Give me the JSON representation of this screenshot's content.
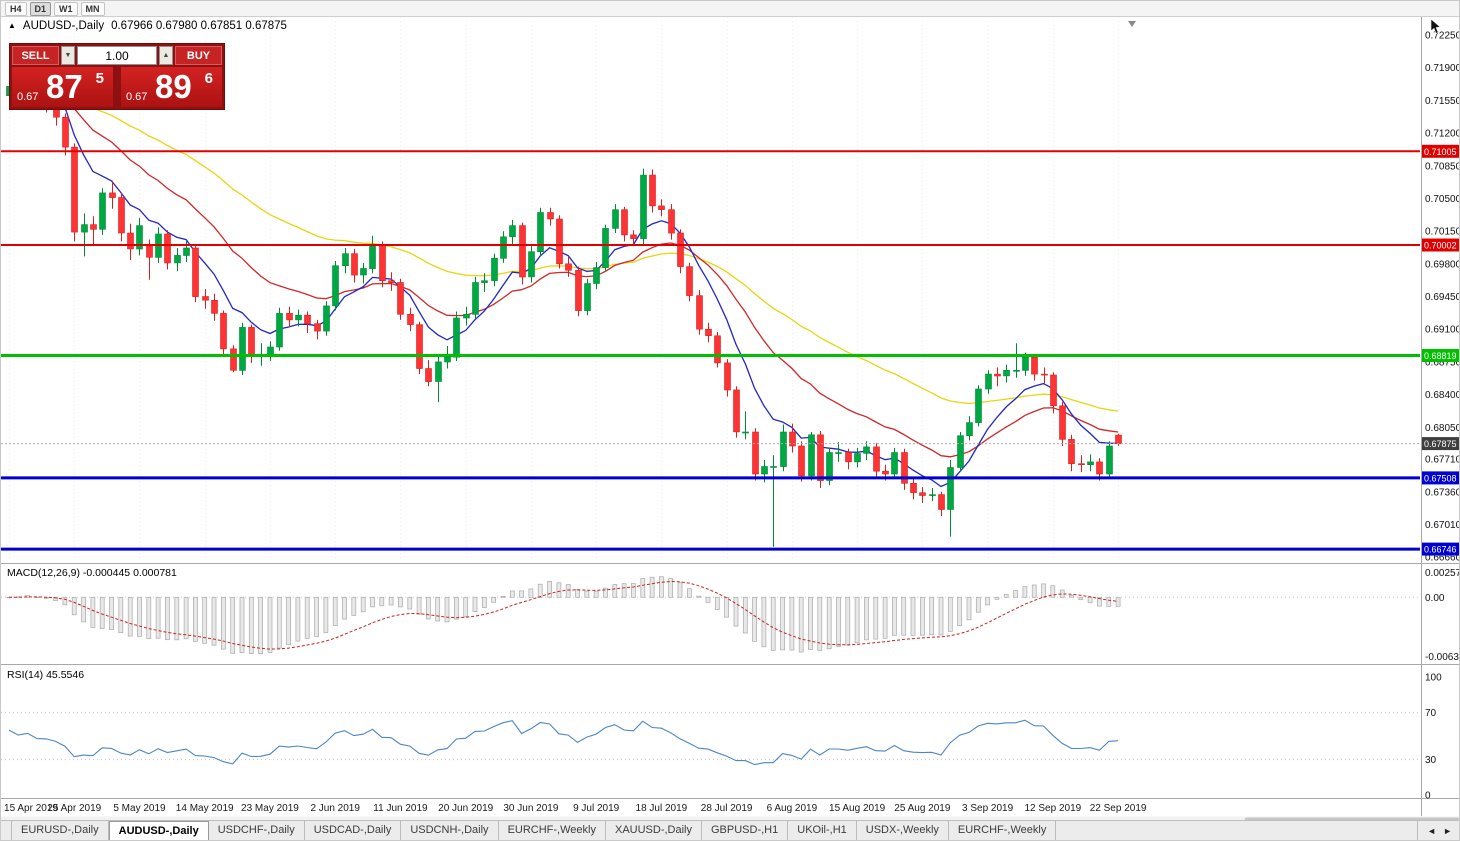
{
  "toolbar": {
    "timeframes": [
      "H4",
      "D1",
      "W1",
      "MN"
    ],
    "active": "D1"
  },
  "chart_header": {
    "symbol": "AUDUSD-,Daily",
    "ohlc": "0.67966 0.67980 0.67851 0.67875"
  },
  "icons": {
    "collapse": "▲",
    "vol_down": "▼",
    "vol_up": "▲",
    "tab_prev": "◄",
    "tab_next": "►"
  },
  "trade_panel": {
    "sell_label": "SELL",
    "buy_label": "BUY",
    "volume": "1.00",
    "sell_prefix": "0.67",
    "sell_big": "87",
    "sell_sup": "5",
    "buy_prefix": "0.67",
    "buy_big": "89",
    "buy_sup": "6"
  },
  "colors": {
    "bull": "#00A843",
    "bull_dark": "#008a36",
    "bear": "#FE3434",
    "bear_dark": "#d92020",
    "ma_fast": "#2026c8",
    "ma_mid": "#d02828",
    "ma_slow": "#e8d50f",
    "macd_signal": "#cc2222",
    "macd_hist_fill": "#e8e8e8",
    "macd_hist_stroke": "#a9a9a9",
    "rsi": "#4a86c8",
    "grid": "#ededed",
    "bid_tag": "#3f3f3f",
    "level_red": "#e00000",
    "level_green": "#00c000",
    "level_blue": "#0000d0"
  },
  "tabs": {
    "items": [
      "EURUSD-,Daily",
      "AUDUSD-,Daily",
      "USDCHF-,Daily",
      "USDCAD-,Daily",
      "USDCNH-,Daily",
      "EURCHF-,Weekly",
      "XAUUSD-,Daily",
      "GBPUSD-,H1",
      "UKOil-,H1",
      "USDX-,Weekly",
      "EURCHF-,Weekly"
    ],
    "active_index": 1
  },
  "chart_data": {
    "type": "candlestick",
    "symbol": "AUDUSD",
    "timeframe": "Daily",
    "current_bid": {
      "price": 0.67875,
      "label": "0.67875"
    },
    "y_axis": {
      "min": 0.6664,
      "max": 0.724,
      "ticks": [
        "0.72250",
        "0.71900",
        "0.71550",
        "0.71200",
        "0.70850",
        "0.70500",
        "0.70150",
        "0.69800",
        "0.69450",
        "0.69100",
        "0.68750",
        "0.68400",
        "0.68050",
        "0.67710",
        "0.67360",
        "0.67010",
        "0.66660"
      ]
    },
    "x_axis_dates": [
      "15 Apr 2019",
      "25 Apr 2019",
      "5 May 2019",
      "14 May 2019",
      "23 May 2019",
      "2 Jun 2019",
      "11 Jun 2019",
      "20 Jun 2019",
      "30 Jun 2019",
      "9 Jul 2019",
      "18 Jul 2019",
      "28 Jul 2019",
      "6 Aug 2019",
      "15 Aug 2019",
      "25 Aug 2019",
      "3 Sep 2019",
      "12 Sep 2019",
      "22 Sep 2019"
    ],
    "horizontal_lines": [
      {
        "price": 0.71005,
        "label": "0.71005",
        "color": "#e00000",
        "width": 2
      },
      {
        "price": 0.70002,
        "label": "0.70002",
        "color": "#e00000",
        "width": 2
      },
      {
        "price": 0.68819,
        "label": "0.68819",
        "color": "#00c000",
        "width": 3
      },
      {
        "price": 0.67508,
        "label": "0.67508",
        "color": "#0000d0",
        "width": 3
      },
      {
        "price": 0.66746,
        "label": "0.66746",
        "color": "#0000d0",
        "width": 3
      }
    ],
    "moving_averages": [
      {
        "name": "ma-fast",
        "period": 8,
        "color": "#2026c8"
      },
      {
        "name": "ma-mid",
        "period": 20,
        "color": "#d02828"
      },
      {
        "name": "ma-slow",
        "period": 45,
        "color": "#e8d50f"
      }
    ],
    "indicators": [
      {
        "name": "MACD",
        "label": "MACD(12,26,9) -0.000445 0.000781",
        "params": [
          12,
          26,
          9
        ],
        "axis_labels": [
          "0.002574",
          "0.00",
          "-0.006326"
        ],
        "range": [
          -0.006326,
          0.002574
        ]
      },
      {
        "name": "RSI",
        "label": "RSI(14) 45.5546",
        "period": 14,
        "levels": [
          70,
          30
        ],
        "axis_labels": [
          "100",
          "70",
          "30",
          "0"
        ],
        "range": [
          0,
          100
        ]
      }
    ],
    "candles": [
      [
        0.716,
        0.7178,
        0.7152,
        0.717
      ],
      [
        0.717,
        0.7184,
        0.7162,
        0.7176
      ],
      [
        0.7176,
        0.7206,
        0.7168,
        0.7188
      ],
      [
        0.7188,
        0.7192,
        0.7147,
        0.7155
      ],
      [
        0.7155,
        0.7162,
        0.7142,
        0.7153
      ],
      [
        0.7153,
        0.7159,
        0.7128,
        0.7137
      ],
      [
        0.7137,
        0.7141,
        0.7096,
        0.7105
      ],
      [
        0.7105,
        0.7109,
        0.7004,
        0.7014
      ],
      [
        0.7014,
        0.7034,
        0.6988,
        0.7022
      ],
      [
        0.7022,
        0.7031,
        0.7001,
        0.7017
      ],
      [
        0.7017,
        0.7061,
        0.7011,
        0.7056
      ],
      [
        0.7056,
        0.7069,
        0.7039,
        0.7051
      ],
      [
        0.7051,
        0.7056,
        0.7004,
        0.7013
      ],
      [
        0.7013,
        0.7023,
        0.6984,
        0.6996
      ],
      [
        0.6996,
        0.7029,
        0.6989,
        0.7021
      ],
      [
        0.7,
        0.7006,
        0.6963,
        0.6987
      ],
      [
        0.6987,
        0.7019,
        0.6981,
        0.7012
      ],
      [
        0.7012,
        0.7016,
        0.6974,
        0.6981
      ],
      [
        0.6981,
        0.6997,
        0.6972,
        0.6989
      ],
      [
        0.6989,
        0.7005,
        0.6982,
        0.6997
      ],
      [
        0.6997,
        0.6999,
        0.6939,
        0.6945
      ],
      [
        0.6945,
        0.6953,
        0.6932,
        0.6941
      ],
      [
        0.6941,
        0.6948,
        0.6919,
        0.6927
      ],
      [
        0.6927,
        0.693,
        0.6882,
        0.6889
      ],
      [
        0.6889,
        0.6893,
        0.6864,
        0.6866
      ],
      [
        0.6866,
        0.6917,
        0.6861,
        0.6912
      ],
      [
        0.6912,
        0.6915,
        0.6874,
        0.6881
      ],
      [
        0.6881,
        0.6895,
        0.6871,
        0.6882
      ],
      [
        0.6882,
        0.6897,
        0.6876,
        0.6891
      ],
      [
        0.6891,
        0.6933,
        0.6887,
        0.6927
      ],
      [
        0.6927,
        0.6934,
        0.6912,
        0.692
      ],
      [
        0.692,
        0.6931,
        0.6913,
        0.6925
      ],
      [
        0.6925,
        0.6929,
        0.6906,
        0.6916
      ],
      [
        0.6916,
        0.692,
        0.6899,
        0.6908
      ],
      [
        0.6908,
        0.694,
        0.6903,
        0.6935
      ],
      [
        0.6935,
        0.6983,
        0.693,
        0.6978
      ],
      [
        0.6978,
        0.6997,
        0.697,
        0.6991
      ],
      [
        0.6991,
        0.6996,
        0.696,
        0.6968
      ],
      [
        0.6968,
        0.6981,
        0.6959,
        0.6975
      ],
      [
        0.6975,
        0.701,
        0.697,
        0.7
      ],
      [
        0.7,
        0.7004,
        0.6955,
        0.6962
      ],
      [
        0.6962,
        0.6971,
        0.6951,
        0.696
      ],
      [
        0.696,
        0.6964,
        0.692,
        0.6926
      ],
      [
        0.6926,
        0.6933,
        0.6908,
        0.6915
      ],
      [
        0.6915,
        0.6918,
        0.6862,
        0.6868
      ],
      [
        0.6868,
        0.6877,
        0.6849,
        0.6854
      ],
      [
        0.6854,
        0.6883,
        0.6832,
        0.6875
      ],
      [
        0.6875,
        0.6892,
        0.6868,
        0.688
      ],
      [
        0.688,
        0.6929,
        0.6876,
        0.6922
      ],
      [
        0.6922,
        0.6934,
        0.6914,
        0.6926
      ],
      [
        0.6926,
        0.6966,
        0.6921,
        0.696
      ],
      [
        0.696,
        0.697,
        0.695,
        0.6962
      ],
      [
        0.6962,
        0.6991,
        0.6956,
        0.6986
      ],
      [
        0.6986,
        0.7015,
        0.6981,
        0.7009
      ],
      [
        0.7009,
        0.7027,
        0.7001,
        0.7021
      ],
      [
        0.7021,
        0.7024,
        0.6958,
        0.6966
      ],
      [
        0.6966,
        0.6999,
        0.696,
        0.6993
      ],
      [
        0.6993,
        0.704,
        0.6988,
        0.7035
      ],
      [
        0.7035,
        0.704,
        0.7021,
        0.7028
      ],
      [
        0.7028,
        0.7032,
        0.6975,
        0.698
      ],
      [
        0.698,
        0.6987,
        0.6966,
        0.6973
      ],
      [
        0.6973,
        0.6977,
        0.6924,
        0.693
      ],
      [
        0.693,
        0.6964,
        0.6925,
        0.6959
      ],
      [
        0.6959,
        0.6982,
        0.6953,
        0.6976
      ],
      [
        0.6976,
        0.7022,
        0.6972,
        0.7018
      ],
      [
        0.7018,
        0.7044,
        0.7013,
        0.7038
      ],
      [
        0.7038,
        0.7041,
        0.7004,
        0.7011
      ],
      [
        0.7011,
        0.7016,
        0.6999,
        0.7007
      ],
      [
        0.7007,
        0.7082,
        0.7,
        0.7075
      ],
      [
        0.7075,
        0.7081,
        0.7035,
        0.7042
      ],
      [
        0.7042,
        0.7049,
        0.7031,
        0.7038
      ],
      [
        0.7038,
        0.7044,
        0.7006,
        0.7013
      ],
      [
        0.7013,
        0.7017,
        0.697,
        0.6977
      ],
      [
        0.6977,
        0.6981,
        0.694,
        0.6946
      ],
      [
        0.6946,
        0.6952,
        0.6904,
        0.691
      ],
      [
        0.691,
        0.6917,
        0.6896,
        0.6903
      ],
      [
        0.6903,
        0.6907,
        0.6869,
        0.6874
      ],
      [
        0.6874,
        0.6878,
        0.6838,
        0.6845
      ],
      [
        0.6845,
        0.6849,
        0.6794,
        0.68
      ],
      [
        0.68,
        0.6822,
        0.6792,
        0.68
      ],
      [
        0.68,
        0.6804,
        0.6748,
        0.6755
      ],
      [
        0.6755,
        0.677,
        0.6746,
        0.6763
      ],
      [
        0.6763,
        0.6775,
        0.6677,
        0.6763
      ],
      [
        0.6763,
        0.6808,
        0.6758,
        0.68
      ],
      [
        0.68,
        0.6809,
        0.6778,
        0.6785
      ],
      [
        0.6785,
        0.679,
        0.6747,
        0.6753
      ],
      [
        0.6753,
        0.68,
        0.6748,
        0.6797
      ],
      [
        0.6797,
        0.6801,
        0.674,
        0.6748
      ],
      [
        0.6748,
        0.6783,
        0.6743,
        0.6778
      ],
      [
        0.6778,
        0.6789,
        0.6768,
        0.6778
      ],
      [
        0.6778,
        0.6782,
        0.676,
        0.6768
      ],
      [
        0.6768,
        0.6783,
        0.6762,
        0.6777
      ],
      [
        0.6777,
        0.679,
        0.677,
        0.6784
      ],
      [
        0.6784,
        0.6788,
        0.6751,
        0.6758
      ],
      [
        0.6758,
        0.6765,
        0.6748,
        0.6755
      ],
      [
        0.6755,
        0.6783,
        0.675,
        0.6778
      ],
      [
        0.6778,
        0.6782,
        0.6738,
        0.6745
      ],
      [
        0.6745,
        0.675,
        0.6728,
        0.6735
      ],
      [
        0.6735,
        0.6741,
        0.6724,
        0.6732
      ],
      [
        0.6732,
        0.674,
        0.6726,
        0.6733
      ],
      [
        0.6733,
        0.6736,
        0.671,
        0.6717
      ],
      [
        0.6717,
        0.677,
        0.6688,
        0.6762
      ],
      [
        0.6762,
        0.68,
        0.6758,
        0.6796
      ],
      [
        0.6796,
        0.6817,
        0.6791,
        0.681
      ],
      [
        0.681,
        0.685,
        0.6806,
        0.6846
      ],
      [
        0.6846,
        0.6866,
        0.6841,
        0.6862
      ],
      [
        0.6862,
        0.6869,
        0.6849,
        0.686
      ],
      [
        0.686,
        0.6872,
        0.6853,
        0.6866
      ],
      [
        0.6866,
        0.6895,
        0.6858,
        0.6866
      ],
      [
        0.6866,
        0.6885,
        0.686,
        0.688
      ],
      [
        0.688,
        0.6883,
        0.6855,
        0.6862
      ],
      [
        0.6862,
        0.6869,
        0.6852,
        0.6861
      ],
      [
        0.6861,
        0.6864,
        0.682,
        0.6828
      ],
      [
        0.6828,
        0.6832,
        0.6785,
        0.6792
      ],
      [
        0.6792,
        0.6797,
        0.6758,
        0.6766
      ],
      [
        0.6766,
        0.6775,
        0.6757,
        0.6765
      ],
      [
        0.6765,
        0.6776,
        0.6758,
        0.6768
      ],
      [
        0.6768,
        0.6772,
        0.6748,
        0.6755
      ],
      [
        0.6755,
        0.679,
        0.675,
        0.6785
      ],
      [
        0.67966,
        0.6798,
        0.67851,
        0.67875
      ]
    ]
  }
}
